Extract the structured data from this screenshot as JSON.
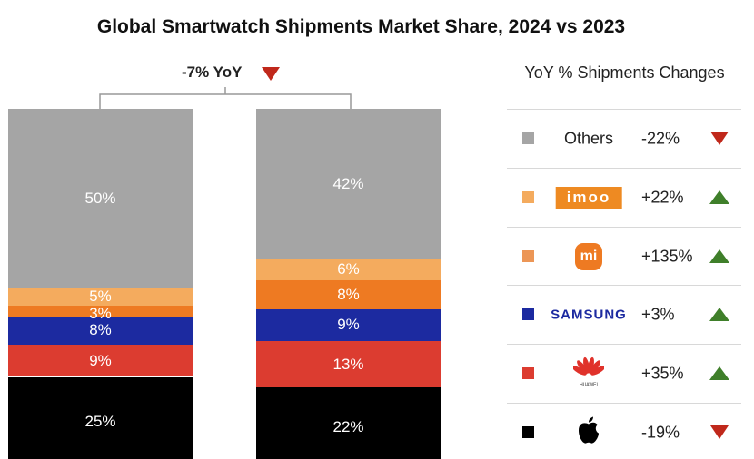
{
  "chart_data": {
    "type": "bar",
    "stacked": true,
    "title": "Global Smartwatch Shipments Market Share, 2024 vs 2023",
    "annotation": "-7% YoY",
    "annotation_direction": "down",
    "ylim": [
      0,
      100
    ],
    "series": [
      {
        "name": "Apple",
        "values": [
          25,
          22
        ],
        "color": "#000000",
        "labels": [
          "25%",
          "22%"
        ]
      },
      {
        "name": "Huawei",
        "values": [
          9,
          13
        ],
        "color": "#dc3c30",
        "labels": [
          "9%",
          "13%"
        ]
      },
      {
        "name": "Samsung",
        "values": [
          8,
          9
        ],
        "color": "#1c2aa0",
        "labels": [
          "8%",
          "9%"
        ]
      },
      {
        "name": "Xiaomi",
        "values": [
          3,
          8
        ],
        "color": "#ee7a22",
        "labels": [
          "3%",
          "8%"
        ]
      },
      {
        "name": "imoo",
        "values": [
          5,
          6
        ],
        "color": "#f4ab5e",
        "labels": [
          "5%",
          "6%"
        ]
      },
      {
        "name": "Others",
        "values": [
          50,
          42
        ],
        "color": "#a5a5a5",
        "labels": [
          "50%",
          "42%"
        ]
      }
    ],
    "legend": {
      "title": "YoY % Shipments Changes",
      "placement": "right",
      "items": [
        {
          "name": "Others",
          "logo_text": "Others",
          "change": "-22%",
          "direction": "down",
          "color": "#a5a5a5"
        },
        {
          "name": "imoo",
          "logo_text": "imoo",
          "change": "+22%",
          "direction": "up",
          "color": "#f4ab5e"
        },
        {
          "name": "Xiaomi",
          "logo_text": "mi",
          "change": "+135%",
          "direction": "up",
          "color": "#ec9656"
        },
        {
          "name": "Samsung",
          "logo_text": "SAMSUNG",
          "change": "+3%",
          "direction": "up",
          "color": "#1c2aa0"
        },
        {
          "name": "Huawei",
          "logo_text": "HUAWEI",
          "change": "+35%",
          "direction": "up",
          "color": "#dc3c30"
        },
        {
          "name": "Apple",
          "logo_text": "",
          "change": "-19%",
          "direction": "down",
          "color": "#000000"
        }
      ]
    },
    "colors": {
      "down": "#c0281b",
      "up": "#3f7f2a"
    }
  }
}
